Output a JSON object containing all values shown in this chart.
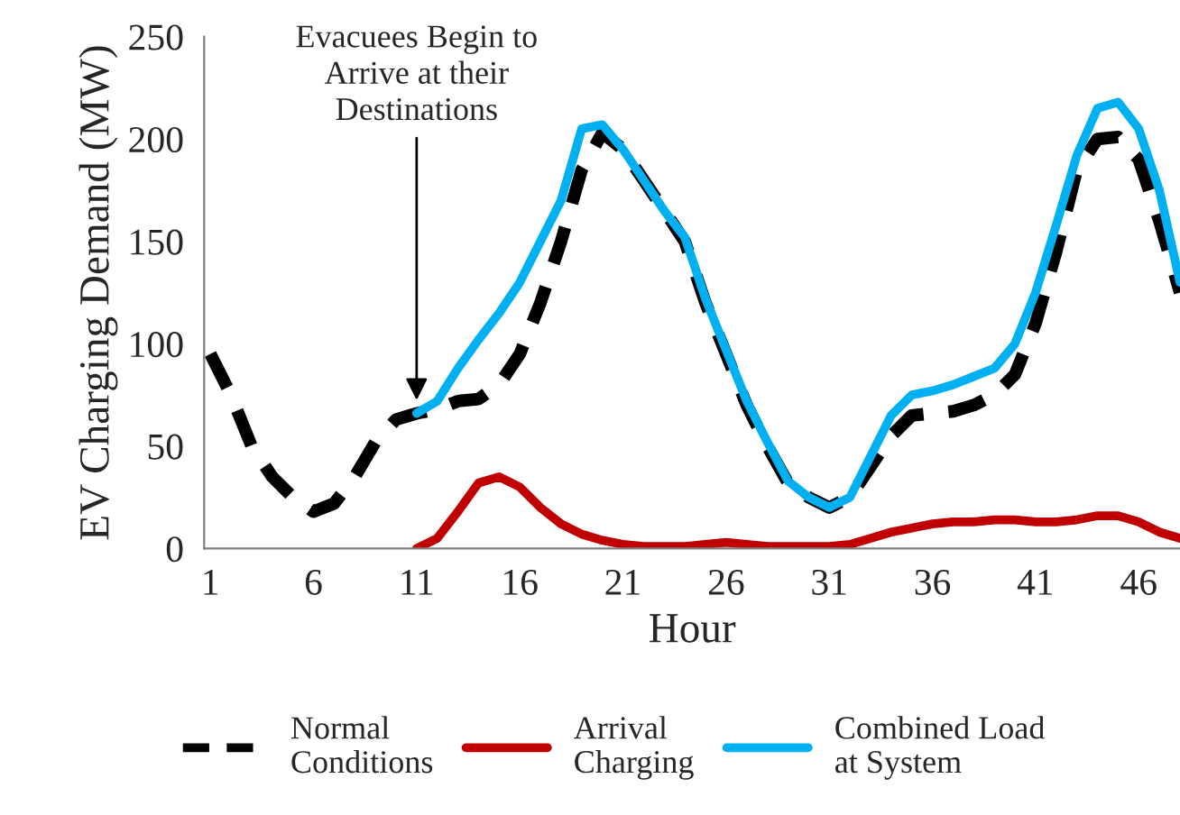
{
  "chart_data": {
    "type": "line",
    "xlabel": "Hour",
    "ylabel": "EV Charging Demand (MW)",
    "x": [
      1,
      2,
      3,
      4,
      5,
      6,
      7,
      8,
      9,
      10,
      11,
      12,
      13,
      14,
      15,
      16,
      17,
      18,
      19,
      20,
      21,
      22,
      23,
      24,
      25,
      26,
      27,
      28,
      29,
      30,
      31,
      32,
      33,
      34,
      35,
      36,
      37,
      38,
      39,
      40,
      41,
      42,
      43,
      44,
      45,
      46,
      47,
      48
    ],
    "series": [
      {
        "name": "Normal Conditions",
        "color": "#000000",
        "line_style": "dashed",
        "values": [
          95,
          75,
          50,
          35,
          25,
          18,
          22,
          35,
          52,
          63,
          66,
          68,
          72,
          73,
          80,
          95,
          120,
          150,
          185,
          203,
          195,
          180,
          165,
          150,
          120,
          95,
          70,
          50,
          32,
          25,
          20,
          25,
          40,
          55,
          65,
          66,
          67,
          70,
          75,
          85,
          110,
          145,
          185,
          200,
          201,
          190,
          160,
          125
        ]
      },
      {
        "name": "Arrival Charging",
        "color": "#c00000",
        "line_style": "solid",
        "values": [
          null,
          null,
          null,
          null,
          null,
          null,
          null,
          null,
          null,
          null,
          0,
          5,
          18,
          32,
          35,
          30,
          20,
          12,
          7,
          4,
          2,
          1,
          1,
          1,
          2,
          3,
          2,
          1,
          1,
          1,
          1,
          2,
          5,
          8,
          10,
          12,
          13,
          13,
          14,
          14,
          13,
          13,
          14,
          16,
          16,
          13,
          8,
          5
        ]
      },
      {
        "name": "Combined Load at System",
        "color": "#00b0f0",
        "line_style": "solid",
        "values": [
          null,
          null,
          null,
          null,
          null,
          null,
          null,
          null,
          null,
          null,
          66,
          72,
          88,
          102,
          115,
          130,
          150,
          170,
          205,
          207,
          195,
          180,
          165,
          152,
          122,
          97,
          72,
          52,
          33,
          25,
          20,
          25,
          45,
          65,
          75,
          77,
          80,
          84,
          88,
          100,
          125,
          158,
          192,
          215,
          218,
          205,
          175,
          130
        ]
      }
    ],
    "xlim": [
      0.7,
      48
    ],
    "xticks": [
      1,
      6,
      11,
      16,
      21,
      26,
      31,
      36,
      41,
      46
    ],
    "ylim": [
      0,
      250
    ],
    "yticks": [
      0,
      50,
      100,
      150,
      200,
      250
    ],
    "annotations": [
      {
        "text": "Evacuees Begin to\nArrive at their\nDestinations",
        "x": 11,
        "y": 66
      }
    ],
    "grid": false,
    "legend": "bottom",
    "marker": "none"
  }
}
